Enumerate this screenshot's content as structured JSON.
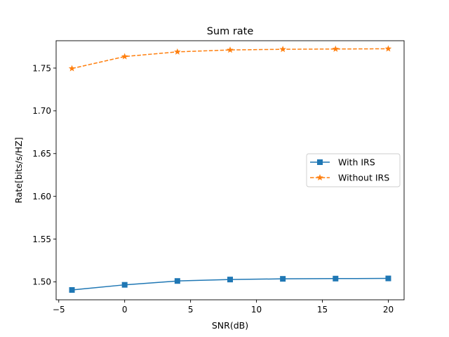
{
  "chart_data": {
    "type": "line",
    "title": "Sum rate",
    "xlabel": "SNR(dB)",
    "ylabel": "Rate[bits/s/HZ]",
    "xlim": [
      -5.2,
      21.2
    ],
    "ylim": [
      1.479,
      1.782
    ],
    "xticks": [
      -5,
      0,
      5,
      10,
      15,
      20
    ],
    "xtick_labels": [
      "−5",
      "0",
      "5",
      "10",
      "15",
      "20"
    ],
    "yticks": [
      1.5,
      1.55,
      1.6,
      1.65,
      1.7,
      1.75
    ],
    "ytick_labels": [
      "1.50",
      "1.55",
      "1.60",
      "1.65",
      "1.70",
      "1.75"
    ],
    "grid": false,
    "legend_position": "center-right",
    "x": [
      -4,
      0,
      4,
      8,
      12,
      16,
      20
    ],
    "series": [
      {
        "name": "With IRS",
        "values": [
          1.4905,
          1.4965,
          1.501,
          1.5027,
          1.5035,
          1.5038,
          1.504
        ],
        "color": "#1f77b4",
        "marker": "square",
        "linestyle": "solid"
      },
      {
        "name": "Without IRS",
        "values": [
          1.7495,
          1.7635,
          1.769,
          1.7712,
          1.772,
          1.7723,
          1.7726
        ],
        "color": "#ff7f0e",
        "marker": "star",
        "linestyle": "dashed"
      }
    ]
  }
}
